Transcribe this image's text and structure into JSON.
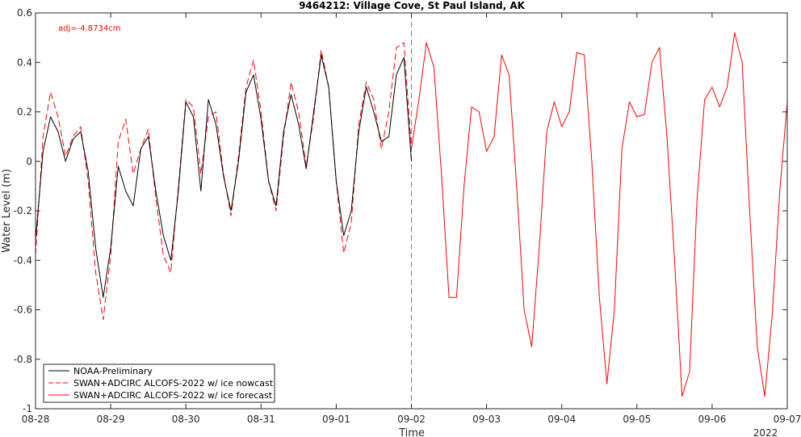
{
  "chart_data": {
    "type": "line",
    "title": "9464212: Village Cove, St Paul Island, AK",
    "xlabel": "Time",
    "ylabel": "Water Level (m)",
    "year_label": "2022",
    "annotation": "adj=-4.8734cm",
    "colors": {
      "observed": "#000000",
      "model": "#ff0000",
      "annotation": "#ff0000",
      "now_line": "#808080"
    },
    "xlim": [
      "08-28",
      "09-07"
    ],
    "ylim": [
      -1,
      0.6
    ],
    "x_ticks": [
      "08-28",
      "08-29",
      "08-30",
      "08-31",
      "09-01",
      "09-02",
      "09-03",
      "09-04",
      "09-05",
      "09-06",
      "09-07"
    ],
    "y_ticks": [
      -1,
      -0.8,
      -0.6,
      -0.4,
      -0.2,
      0,
      0.2,
      0.4,
      0.6
    ],
    "y_tick_labels": [
      "-1",
      "-0.8",
      "-0.6",
      "-0.4",
      "-0.2",
      "0",
      "0.2",
      "0.4",
      "0.6"
    ],
    "nowcast_end": "09-02",
    "legend_placement": "bottom-left",
    "series": [
      {
        "name": "NOAA-Preliminary",
        "style": "solid",
        "color": "#000000",
        "x_days": [
          0.0,
          0.1,
          0.2,
          0.3,
          0.4,
          0.5,
          0.6,
          0.7,
          0.8,
          0.9,
          1.0,
          1.1,
          1.2,
          1.3,
          1.4,
          1.5,
          1.6,
          1.7,
          1.8,
          1.9,
          2.0,
          2.1,
          2.2,
          2.3,
          2.4,
          2.5,
          2.6,
          2.7,
          2.8,
          2.9,
          3.0,
          3.1,
          3.2,
          3.3,
          3.4,
          3.5,
          3.6,
          3.7,
          3.8,
          3.9,
          4.0,
          4.1,
          4.2,
          4.3,
          4.4,
          4.5,
          4.6,
          4.7,
          4.8,
          4.9,
          5.0,
          5.1,
          5.2,
          5.3,
          5.4
        ],
        "y": [
          -0.32,
          0.04,
          0.18,
          0.12,
          0.0,
          0.09,
          0.12,
          -0.04,
          -0.35,
          -0.55,
          -0.35,
          -0.02,
          -0.12,
          -0.18,
          0.05,
          0.1,
          -0.12,
          -0.3,
          -0.4,
          -0.12,
          0.24,
          0.18,
          -0.12,
          0.25,
          0.15,
          -0.06,
          -0.2,
          0.0,
          0.28,
          0.35,
          0.17,
          -0.08,
          -0.18,
          0.12,
          0.27,
          0.15,
          -0.03,
          0.2,
          0.43,
          0.3,
          -0.08,
          -0.3,
          -0.2,
          0.12,
          0.3,
          0.2,
          0.08,
          0.1,
          0.35,
          0.42,
          0.0,
          null,
          null,
          null,
          null
        ]
      },
      {
        "name": "SWAN+ADCIRC ALCOFS-2022 w/ ice nowcast",
        "style": "dashed",
        "color": "#ff0000",
        "x_days": [
          0.0,
          0.1,
          0.2,
          0.3,
          0.4,
          0.5,
          0.6,
          0.7,
          0.8,
          0.9,
          1.0,
          1.1,
          1.2,
          1.3,
          1.4,
          1.5,
          1.6,
          1.7,
          1.8,
          1.9,
          2.0,
          2.1,
          2.2,
          2.3,
          2.4,
          2.5,
          2.6,
          2.7,
          2.8,
          2.9,
          3.0,
          3.1,
          3.2,
          3.3,
          3.4,
          3.5,
          3.6,
          3.7,
          3.8,
          3.9,
          4.0,
          4.1,
          4.2,
          4.3,
          4.4,
          4.5,
          4.6,
          4.7,
          4.8,
          4.9,
          5.0
        ],
        "y": [
          -0.38,
          0.1,
          0.28,
          0.18,
          0.02,
          0.1,
          0.14,
          -0.08,
          -0.45,
          -0.64,
          -0.38,
          0.08,
          0.17,
          -0.05,
          0.05,
          0.13,
          -0.15,
          -0.38,
          -0.45,
          -0.1,
          0.25,
          0.22,
          -0.05,
          0.18,
          0.2,
          -0.05,
          -0.22,
          0.02,
          0.3,
          0.41,
          0.2,
          -0.08,
          -0.2,
          0.1,
          0.32,
          0.2,
          -0.02,
          0.18,
          0.45,
          0.3,
          -0.08,
          -0.37,
          -0.25,
          0.15,
          0.32,
          0.25,
          0.05,
          0.2,
          0.46,
          0.48,
          0.05
        ]
      },
      {
        "name": "SWAN+ADCIRC ALCOFS-2022 w/ ice forecast",
        "style": "solid",
        "color": "#ff0000",
        "x_days": [
          5.0,
          5.1,
          5.2,
          5.3,
          5.4,
          5.5,
          5.6,
          5.7,
          5.8,
          5.9,
          6.0,
          6.1,
          6.2,
          6.3,
          6.4,
          6.5,
          6.6,
          6.7,
          6.8,
          6.9,
          7.0,
          7.1,
          7.2,
          7.3,
          7.4,
          7.5,
          7.6,
          7.7,
          7.8,
          7.9,
          8.0,
          8.1,
          8.2,
          8.3,
          8.4,
          8.5,
          8.6,
          8.7,
          8.8,
          8.9,
          9.0,
          9.1,
          9.2,
          9.3,
          9.4,
          9.5,
          9.6,
          9.7,
          9.8,
          9.9,
          10.0
        ],
        "y": [
          0.05,
          0.25,
          0.48,
          0.38,
          -0.05,
          -0.55,
          -0.55,
          -0.1,
          0.22,
          0.2,
          0.04,
          0.1,
          0.43,
          0.35,
          -0.1,
          -0.6,
          -0.75,
          -0.35,
          0.12,
          0.24,
          0.14,
          0.2,
          0.44,
          0.43,
          0.0,
          -0.55,
          -0.9,
          -0.6,
          0.05,
          0.24,
          0.18,
          0.19,
          0.4,
          0.46,
          0.1,
          -0.4,
          -0.95,
          -0.85,
          -0.15,
          0.25,
          0.3,
          0.22,
          0.3,
          0.52,
          0.4,
          -0.2,
          -0.75,
          -0.95,
          -0.62,
          -0.12,
          0.24
        ]
      }
    ]
  }
}
